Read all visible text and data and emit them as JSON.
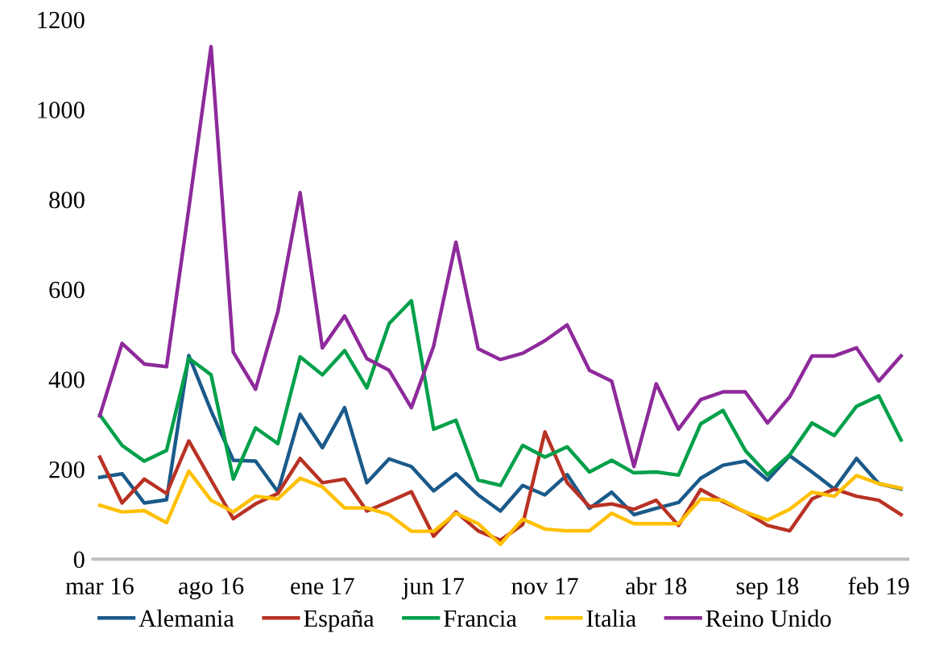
{
  "chart_data": {
    "type": "line",
    "categories": [
      "mar 16",
      null,
      null,
      null,
      null,
      "ago 16",
      null,
      null,
      null,
      null,
      "ene 17",
      null,
      null,
      null,
      null,
      "jun 17",
      null,
      null,
      null,
      null,
      "nov 17",
      null,
      null,
      null,
      null,
      "abr 18",
      null,
      null,
      null,
      null,
      "sep 18",
      null,
      null,
      null,
      null,
      "feb 19",
      null
    ],
    "series": [
      {
        "name": "Alemania",
        "color": "#1a5a8a",
        "values": [
          182,
          190,
          125,
          132,
          453,
          330,
          220,
          218,
          150,
          322,
          248,
          337,
          170,
          223,
          206,
          152,
          190,
          143,
          107,
          164,
          143,
          188,
          113,
          149,
          99,
          113,
          126,
          180,
          209,
          218,
          176,
          230,
          194,
          156,
          224,
          168,
          156
        ]
      },
      {
        "name": "España",
        "color": "#b83224",
        "values": [
          227,
          125,
          178,
          146,
          263,
          176,
          90,
          123,
          146,
          224,
          170,
          178,
          107,
          128,
          150,
          51,
          105,
          63,
          42,
          77,
          283,
          170,
          117,
          123,
          111,
          131,
          75,
          155,
          128,
          105,
          75,
          63,
          134,
          156,
          140,
          131,
          99
        ]
      },
      {
        "name": "Francia",
        "color": "#00a04a",
        "values": [
          321,
          253,
          218,
          242,
          447,
          410,
          178,
          292,
          257,
          450,
          410,
          464,
          381,
          524,
          575,
          289,
          309,
          176,
          164,
          253,
          227,
          250,
          194,
          220,
          192,
          194,
          187,
          301,
          331,
          242,
          188,
          232,
          303,
          275,
          340,
          363,
          265
        ]
      },
      {
        "name": "Italia",
        "color": "#ffc000",
        "values": [
          120,
          105,
          108,
          81,
          196,
          131,
          105,
          140,
          134,
          180,
          161,
          114,
          114,
          99,
          62,
          62,
          102,
          79,
          33,
          89,
          67,
          63,
          63,
          102,
          79,
          79,
          79,
          134,
          131,
          105,
          87,
          111,
          149,
          140,
          186,
          168,
          158
        ]
      },
      {
        "name": "Reino Unido",
        "color": "#8e2a9b",
        "values": [
          319,
          480,
          434,
          428,
          780,
          1140,
          460,
          378,
          550,
          815,
          470,
          541,
          446,
          420,
          337,
          474,
          705,
          468,
          444,
          458,
          486,
          521,
          420,
          396,
          206,
          390,
          289,
          355,
          372,
          372,
          303,
          361,
          452,
          452,
          470,
          396,
          452
        ]
      }
    ],
    "ylim": [
      0,
      1200
    ],
    "yticks": [
      0,
      200,
      400,
      600,
      800,
      1000,
      1200
    ],
    "grid": false,
    "legend": "bottom",
    "marker": "none",
    "line_style": "solid"
  }
}
